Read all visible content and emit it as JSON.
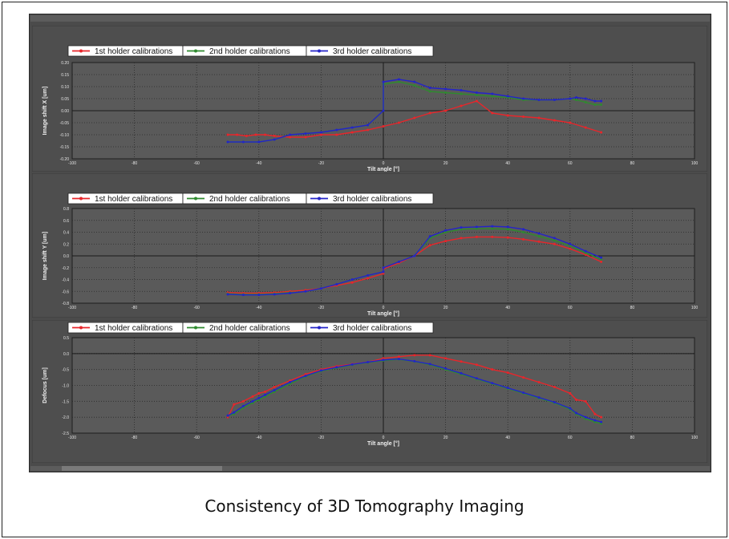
{
  "caption": "Consistency of 3D Tomography Imaging",
  "colors": {
    "series": [
      "#e8262b",
      "#2f8a2f",
      "#2424c8"
    ],
    "panel_bg": "#4b4b4b",
    "plot_bg": "#5a5a5a",
    "legend_bg": "#ffffff"
  },
  "chart_data": [
    {
      "type": "line",
      "xlabel": "Tilt angle [°]",
      "ylabel": "Image shift X [um]",
      "xlim": [
        -100,
        100
      ],
      "ylim": [
        -0.2,
        0.2
      ],
      "xticks": [
        "-100",
        "-80",
        "-60",
        "-40",
        "-20",
        "0",
        "20",
        "40",
        "60",
        "80",
        "100"
      ],
      "yticks": [
        "0.20",
        "0.15",
        "0.10",
        "0.05",
        "0.00",
        "-0.05",
        "-0.10",
        "-0.15",
        "-0.20"
      ],
      "legend_position": "top-left",
      "grid": true,
      "series": [
        {
          "name": "1st holder calibrations",
          "x": [
            -50,
            -47,
            -44,
            -41,
            -38,
            -35,
            -30,
            -25,
            -20,
            -15,
            -10,
            -5,
            0,
            5,
            10,
            15,
            20,
            25,
            30,
            35,
            40,
            45,
            50,
            55,
            60,
            65,
            70
          ],
          "y": [
            -0.1,
            -0.1,
            -0.105,
            -0.1,
            -0.1,
            -0.105,
            -0.11,
            -0.11,
            -0.1,
            -0.1,
            -0.09,
            -0.08,
            -0.065,
            -0.05,
            -0.03,
            -0.01,
            0.0,
            0.02,
            0.04,
            -0.01,
            -0.02,
            -0.025,
            -0.03,
            -0.04,
            -0.05,
            -0.07,
            -0.09
          ]
        },
        {
          "name": "2nd holder calibrations",
          "x": [
            -50,
            -45,
            -40,
            -35,
            -30,
            -25,
            -20,
            -15,
            -10,
            -5,
            0,
            0.01,
            5,
            10,
            15,
            20,
            25,
            30,
            35,
            40,
            45,
            50,
            55,
            60,
            62,
            65,
            68,
            70
          ],
          "y": [
            -0.13,
            -0.13,
            -0.13,
            -0.12,
            -0.1,
            -0.095,
            -0.09,
            -0.08,
            -0.07,
            -0.06,
            0.0,
            0.11,
            0.12,
            0.105,
            0.08,
            0.075,
            0.07,
            0.065,
            0.06,
            0.055,
            0.045,
            0.045,
            0.045,
            0.05,
            0.045,
            0.035,
            0.025,
            0.025
          ]
        },
        {
          "name": "3rd holder calibrations",
          "x": [
            -50,
            -45,
            -40,
            -35,
            -30,
            -25,
            -20,
            -15,
            -10,
            -5,
            0,
            0.01,
            5,
            10,
            15,
            20,
            25,
            30,
            35,
            40,
            45,
            50,
            55,
            60,
            62,
            65,
            68,
            70
          ],
          "y": [
            -0.13,
            -0.13,
            -0.13,
            -0.12,
            -0.1,
            -0.095,
            -0.09,
            -0.08,
            -0.07,
            -0.06,
            0.0,
            0.12,
            0.13,
            0.12,
            0.095,
            0.09,
            0.085,
            0.075,
            0.07,
            0.06,
            0.05,
            0.045,
            0.045,
            0.05,
            0.055,
            0.05,
            0.04,
            0.04
          ]
        }
      ]
    },
    {
      "type": "line",
      "xlabel": "Tilt angle [°]",
      "ylabel": "Image shift Y [um]",
      "xlim": [
        -100,
        100
      ],
      "ylim": [
        -0.8,
        0.8
      ],
      "xticks": [
        "-100",
        "-80",
        "-60",
        "-40",
        "-20",
        "0",
        "20",
        "40",
        "60",
        "80",
        "100"
      ],
      "yticks": [
        "0.8",
        "0.6",
        "0.4",
        "0.2",
        "0.0",
        "-0.2",
        "-0.4",
        "-0.6",
        "-0.8"
      ],
      "legend_position": "top-left",
      "grid": true,
      "series": [
        {
          "name": "1st holder calibrations",
          "x": [
            -50,
            -45,
            -40,
            -35,
            -30,
            -25,
            -20,
            -15,
            -10,
            -5,
            0,
            0.01,
            5,
            10,
            15,
            20,
            25,
            30,
            35,
            40,
            45,
            50,
            55,
            60,
            65,
            70
          ],
          "y": [
            -0.62,
            -0.63,
            -0.63,
            -0.62,
            -0.6,
            -0.58,
            -0.55,
            -0.5,
            -0.45,
            -0.38,
            -0.3,
            -0.22,
            -0.12,
            0.0,
            0.18,
            0.25,
            0.3,
            0.32,
            0.32,
            0.31,
            0.28,
            0.24,
            0.2,
            0.12,
            0.02,
            -0.1
          ]
        },
        {
          "name": "2nd holder calibrations",
          "x": [
            -50,
            -45,
            -40,
            -35,
            -30,
            -25,
            -20,
            -15,
            -10,
            -5,
            0,
            0.01,
            5,
            10,
            15,
            20,
            25,
            30,
            35,
            40,
            45,
            50,
            55,
            60,
            65,
            70
          ],
          "y": [
            -0.64,
            -0.65,
            -0.65,
            -0.64,
            -0.62,
            -0.6,
            -0.55,
            -0.48,
            -0.4,
            -0.33,
            -0.27,
            -0.2,
            -0.1,
            0.0,
            0.3,
            0.4,
            0.45,
            0.46,
            0.46,
            0.45,
            0.4,
            0.33,
            0.26,
            0.17,
            0.05,
            -0.06
          ]
        },
        {
          "name": "3rd holder calibrations",
          "x": [
            -50,
            -45,
            -40,
            -35,
            -30,
            -25,
            -20,
            -15,
            -10,
            -5,
            0,
            0.01,
            5,
            10,
            15,
            20,
            25,
            30,
            35,
            40,
            45,
            50,
            55,
            60,
            65,
            70
          ],
          "y": [
            -0.65,
            -0.66,
            -0.66,
            -0.65,
            -0.63,
            -0.6,
            -0.55,
            -0.48,
            -0.4,
            -0.33,
            -0.27,
            -0.2,
            -0.1,
            0.0,
            0.33,
            0.43,
            0.48,
            0.49,
            0.5,
            0.49,
            0.45,
            0.38,
            0.3,
            0.2,
            0.08,
            -0.03
          ]
        }
      ]
    },
    {
      "type": "line",
      "xlabel": "Tilt angle [°]",
      "ylabel": "Defocus [um]",
      "xlim": [
        -100,
        100
      ],
      "ylim": [
        -2.5,
        0.5
      ],
      "xticks": [
        "-100",
        "-80",
        "-60",
        "-40",
        "-20",
        "0",
        "20",
        "40",
        "60",
        "80",
        "100"
      ],
      "yticks": [
        "0.5",
        "0.0",
        "-0.5",
        "-1.0",
        "-1.5",
        "-2.0",
        "-2.5"
      ],
      "legend_position": "top-left",
      "grid": true,
      "series": [
        {
          "name": "1st holder calibrations",
          "x": [
            -50,
            -48,
            -45,
            -42,
            -40,
            -38,
            -35,
            -30,
            -25,
            -20,
            -15,
            -10,
            -5,
            0,
            5,
            10,
            15,
            20,
            25,
            30,
            35,
            40,
            45,
            50,
            55,
            60,
            62,
            65,
            68,
            70
          ],
          "y": [
            -2.0,
            -1.6,
            -1.5,
            -1.35,
            -1.25,
            -1.2,
            -1.05,
            -0.85,
            -0.65,
            -0.5,
            -0.4,
            -0.33,
            -0.27,
            -0.15,
            -0.1,
            -0.05,
            -0.05,
            -0.15,
            -0.25,
            -0.35,
            -0.5,
            -0.6,
            -0.75,
            -0.9,
            -1.05,
            -1.25,
            -1.45,
            -1.5,
            -1.9,
            -2.0
          ]
        },
        {
          "name": "2nd holder calibrations",
          "x": [
            -50,
            -48,
            -45,
            -42,
            -40,
            -38,
            -35,
            -30,
            -25,
            -20,
            -15,
            -10,
            -5,
            0,
            5,
            10,
            15,
            20,
            25,
            30,
            35,
            40,
            45,
            50,
            55,
            60,
            62,
            65,
            68,
            70
          ],
          "y": [
            -1.95,
            -1.9,
            -1.7,
            -1.55,
            -1.45,
            -1.35,
            -1.2,
            -0.95,
            -0.72,
            -0.55,
            -0.45,
            -0.35,
            -0.28,
            -0.22,
            -0.18,
            -0.25,
            -0.35,
            -0.5,
            -0.65,
            -0.8,
            -0.95,
            -1.1,
            -1.25,
            -1.4,
            -1.55,
            -1.75,
            -1.9,
            -2.05,
            -2.15,
            -2.2
          ]
        },
        {
          "name": "3rd holder calibrations",
          "x": [
            -50,
            -48,
            -45,
            -42,
            -40,
            -38,
            -35,
            -30,
            -25,
            -20,
            -15,
            -10,
            -5,
            0,
            5,
            10,
            15,
            20,
            25,
            30,
            35,
            40,
            45,
            50,
            55,
            60,
            62,
            65,
            68,
            70
          ],
          "y": [
            -1.95,
            -1.85,
            -1.65,
            -1.5,
            -1.4,
            -1.3,
            -1.15,
            -0.9,
            -0.7,
            -0.53,
            -0.43,
            -0.34,
            -0.27,
            -0.2,
            -0.17,
            -0.24,
            -0.33,
            -0.47,
            -0.62,
            -0.78,
            -0.93,
            -1.08,
            -1.23,
            -1.38,
            -1.53,
            -1.72,
            -1.87,
            -2.0,
            -2.1,
            -2.15
          ]
        }
      ]
    }
  ]
}
